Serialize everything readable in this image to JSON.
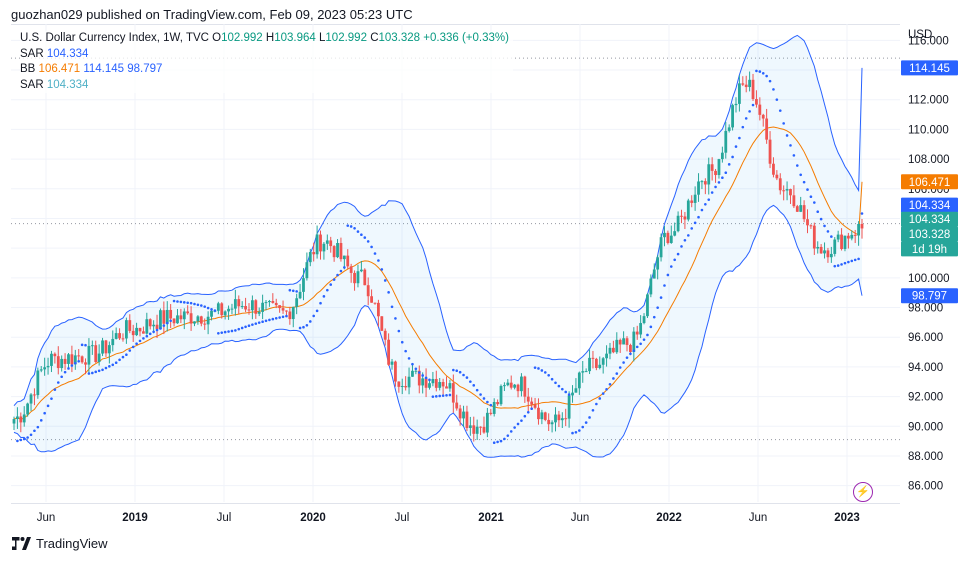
{
  "header": {
    "text": "guozhan029 published on TradingView.com, Feb 09, 2023 05:23 UTC"
  },
  "legend": {
    "symbol": "U.S. Dollar Currency Index, 1W, TVC",
    "o_label": "O",
    "o_val": "102.992",
    "h_label": "H",
    "h_val": "103.964",
    "l_label": "L",
    "l_val": "102.992",
    "c_label": "C",
    "c_val": "103.328",
    "change": "+0.336 (+0.33%)",
    "sar1_label": "SAR",
    "sar1_val": "104.334",
    "bb_label": "BB",
    "bb_basis": "106.471",
    "bb_upper": "114.145",
    "bb_lower": "98.797",
    "sar2_label": "SAR",
    "sar2_val": "104.334"
  },
  "axis": {
    "currency": "USD",
    "y_ticks": [
      "116.000",
      "114.000",
      "112.000",
      "110.000",
      "108.000",
      "106.000",
      "104.000",
      "102.000",
      "100.000",
      "98.000",
      "96.000",
      "94.000",
      "92.000",
      "90.000",
      "88.000",
      "86.000"
    ],
    "x_labels": [
      {
        "text": "Jun",
        "year": false
      },
      {
        "text": "2019",
        "year": true
      },
      {
        "text": "Jul",
        "year": false
      },
      {
        "text": "2020",
        "year": true
      },
      {
        "text": "Jul",
        "year": false
      },
      {
        "text": "2021",
        "year": true
      },
      {
        "text": "Jun",
        "year": false
      },
      {
        "text": "2022",
        "year": true
      },
      {
        "text": "Jun",
        "year": false
      },
      {
        "text": "2023",
        "year": true
      }
    ]
  },
  "price_tags": [
    {
      "label": "114.145",
      "value": 114.145,
      "color": "#2962ff"
    },
    {
      "label": "106.471",
      "value": 106.471,
      "color": "#f57c00"
    },
    {
      "label": "104.334",
      "value": 104.9,
      "color": "#2962ff"
    },
    {
      "label": "104.334",
      "value": 103.95,
      "color": "#26a69a"
    },
    {
      "label": "103.328",
      "value": 102.95,
      "color": "#26a69a"
    },
    {
      "label": "1d 19h",
      "value": 101.95,
      "color": "#26a69a"
    },
    {
      "label": "98.797",
      "value": 98.797,
      "color": "#2962ff"
    }
  ],
  "footer": {
    "brand": "TradingView"
  },
  "chart_data": {
    "type": "candlestick",
    "title": "U.S. Dollar Currency Index, 1W, TVC",
    "ylabel": "USD",
    "ylim": [
      84.9,
      117.1
    ],
    "x": [
      "2018-05",
      "2018-06",
      "2018-09",
      "2019-01",
      "2019-04",
      "2019-07",
      "2019-10",
      "2020-01",
      "2020-03",
      "2020-04",
      "2020-07",
      "2020-10",
      "2021-01",
      "2021-03",
      "2021-06",
      "2021-10",
      "2022-01",
      "2022-04",
      "2022-07",
      "2022-09",
      "2022-11",
      "2023-01",
      "2023-02"
    ],
    "close_approx": [
      90.5,
      94.5,
      94.8,
      96.5,
      97.3,
      97.5,
      98.2,
      97.6,
      102.5,
      100.0,
      93.3,
      93.2,
      90.0,
      93.0,
      90.2,
      94.0,
      95.6,
      103.0,
      107.0,
      113.0,
      106.0,
      102.0,
      103.328
    ],
    "bb_upper_last": 114.145,
    "bb_basis_last": 106.471,
    "bb_lower_last": 98.797,
    "sar_last": 104.334,
    "last": {
      "open": 102.992,
      "high": 103.964,
      "low": 102.992,
      "close": 103.328
    }
  }
}
